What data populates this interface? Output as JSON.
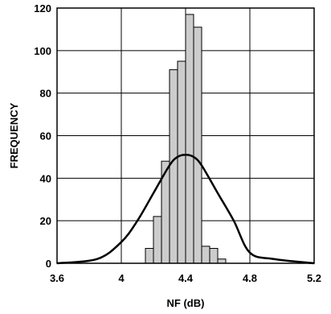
{
  "chart_data": {
    "type": "bar",
    "title": "",
    "xlabel": "NF (dB)",
    "ylabel": "FREQUENCY",
    "xlim": [
      3.6,
      5.2
    ],
    "ylim": [
      0,
      120
    ],
    "x_ticks": [
      "3.6",
      "4",
      "4.4",
      "4.8",
      "5.2"
    ],
    "y_ticks": [
      "0",
      "20",
      "40",
      "60",
      "80",
      "100",
      "120"
    ],
    "grid": true,
    "histogram": {
      "bin_width": 0.05,
      "bin_starts": [
        4.15,
        4.2,
        4.25,
        4.3,
        4.35,
        4.4,
        4.45,
        4.5,
        4.55,
        4.6,
        4.65
      ],
      "values": [
        7,
        22,
        48,
        91,
        95,
        117,
        111,
        8,
        7,
        2,
        0
      ],
      "fill_color": "#cccccc"
    },
    "curve": {
      "x": [
        3.6,
        3.85,
        4.0,
        4.1,
        4.2,
        4.3,
        4.35,
        4.4,
        4.45,
        4.5,
        4.6,
        4.7,
        4.8,
        4.95,
        5.2
      ],
      "y": [
        0,
        2,
        10,
        20,
        33,
        46,
        50,
        51,
        50,
        46,
        33,
        20,
        5,
        2,
        0
      ],
      "color": "#000000"
    }
  }
}
